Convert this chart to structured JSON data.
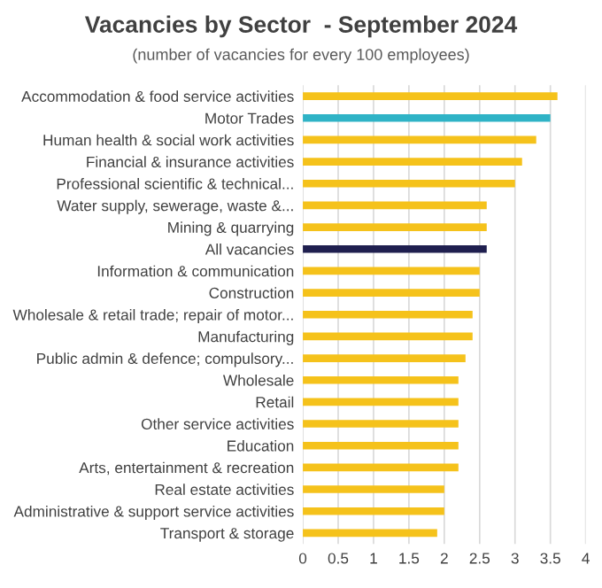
{
  "chart_data": {
    "type": "bar",
    "orientation": "horizontal",
    "title": "Vacancies by Sector  - September 2024",
    "subtitle": "(number of vacancies for every 100 employees)",
    "categories": [
      "Accommodation & food service activities",
      "Motor Trades",
      "Human health & social work activities",
      "Financial & insurance activities",
      "Professional scientific & technical...",
      "Water supply, sewerage, waste &...",
      "Mining & quarrying",
      "All vacancies",
      "Information & communication",
      "Construction",
      "Wholesale & retail trade; repair of motor...",
      "Manufacturing",
      "Public admin & defence; compulsory...",
      "Wholesale",
      "Retail",
      "Other service activities",
      "Education",
      "Arts, entertainment & recreation",
      "Real estate activities",
      "Administrative & support service activities",
      "Transport & storage"
    ],
    "values": [
      3.6,
      3.5,
      3.3,
      3.1,
      3.0,
      2.6,
      2.6,
      2.6,
      2.5,
      2.5,
      2.4,
      2.4,
      2.3,
      2.2,
      2.2,
      2.2,
      2.2,
      2.2,
      2.0,
      2.0,
      1.9
    ],
    "colors": [
      "#f5c21b",
      "#2fb3c6",
      "#f5c21b",
      "#f5c21b",
      "#f5c21b",
      "#f5c21b",
      "#f5c21b",
      "#1f1f4f",
      "#f5c21b",
      "#f5c21b",
      "#f5c21b",
      "#f5c21b",
      "#f5c21b",
      "#f5c21b",
      "#f5c21b",
      "#f5c21b",
      "#f5c21b",
      "#f5c21b",
      "#f5c21b",
      "#f5c21b",
      "#f5c21b"
    ],
    "xlim": [
      0,
      4
    ],
    "xticks": [
      0,
      0.5,
      1,
      1.5,
      2,
      2.5,
      3,
      3.5,
      4
    ],
    "grid": "x"
  }
}
